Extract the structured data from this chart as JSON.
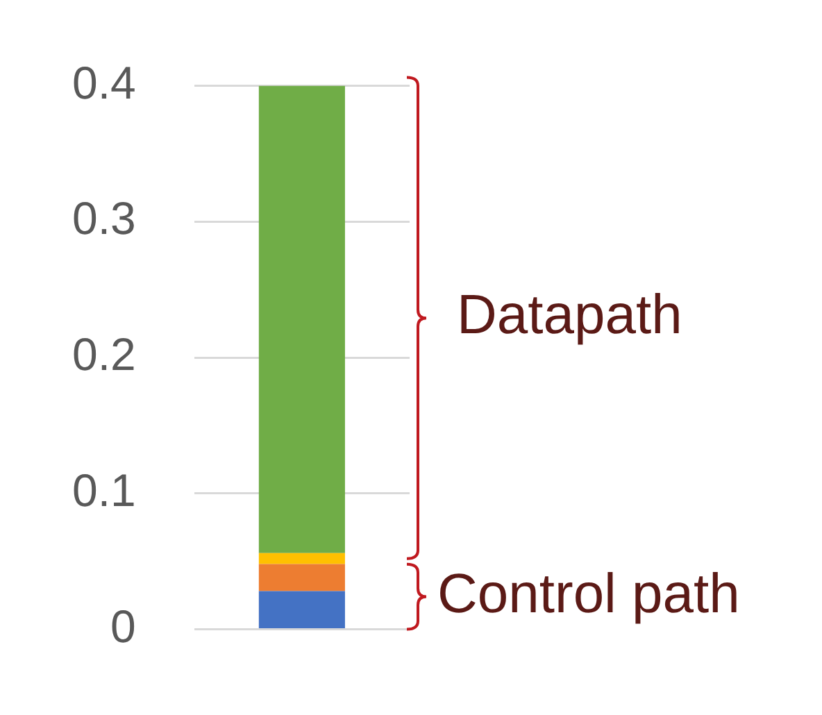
{
  "chart_data": {
    "type": "bar",
    "stacked": true,
    "categories": [
      null
    ],
    "series": [
      {
        "color": "#4472c4",
        "values": [
          0.028
        ]
      },
      {
        "color": "#ed7d31",
        "values": [
          0.02
        ]
      },
      {
        "color": "#ffc000",
        "values": [
          0.008
        ]
      },
      {
        "color": "#70ad47",
        "values": [
          0.344
        ]
      }
    ],
    "ylim": [
      0,
      0.4
    ],
    "yticks": [
      0,
      0.1,
      0.2,
      0.3,
      0.4
    ],
    "grid": "y",
    "tick_labels": "y",
    "legend": false,
    "annotations": [
      "Datapath",
      "Control path"
    ]
  }
}
